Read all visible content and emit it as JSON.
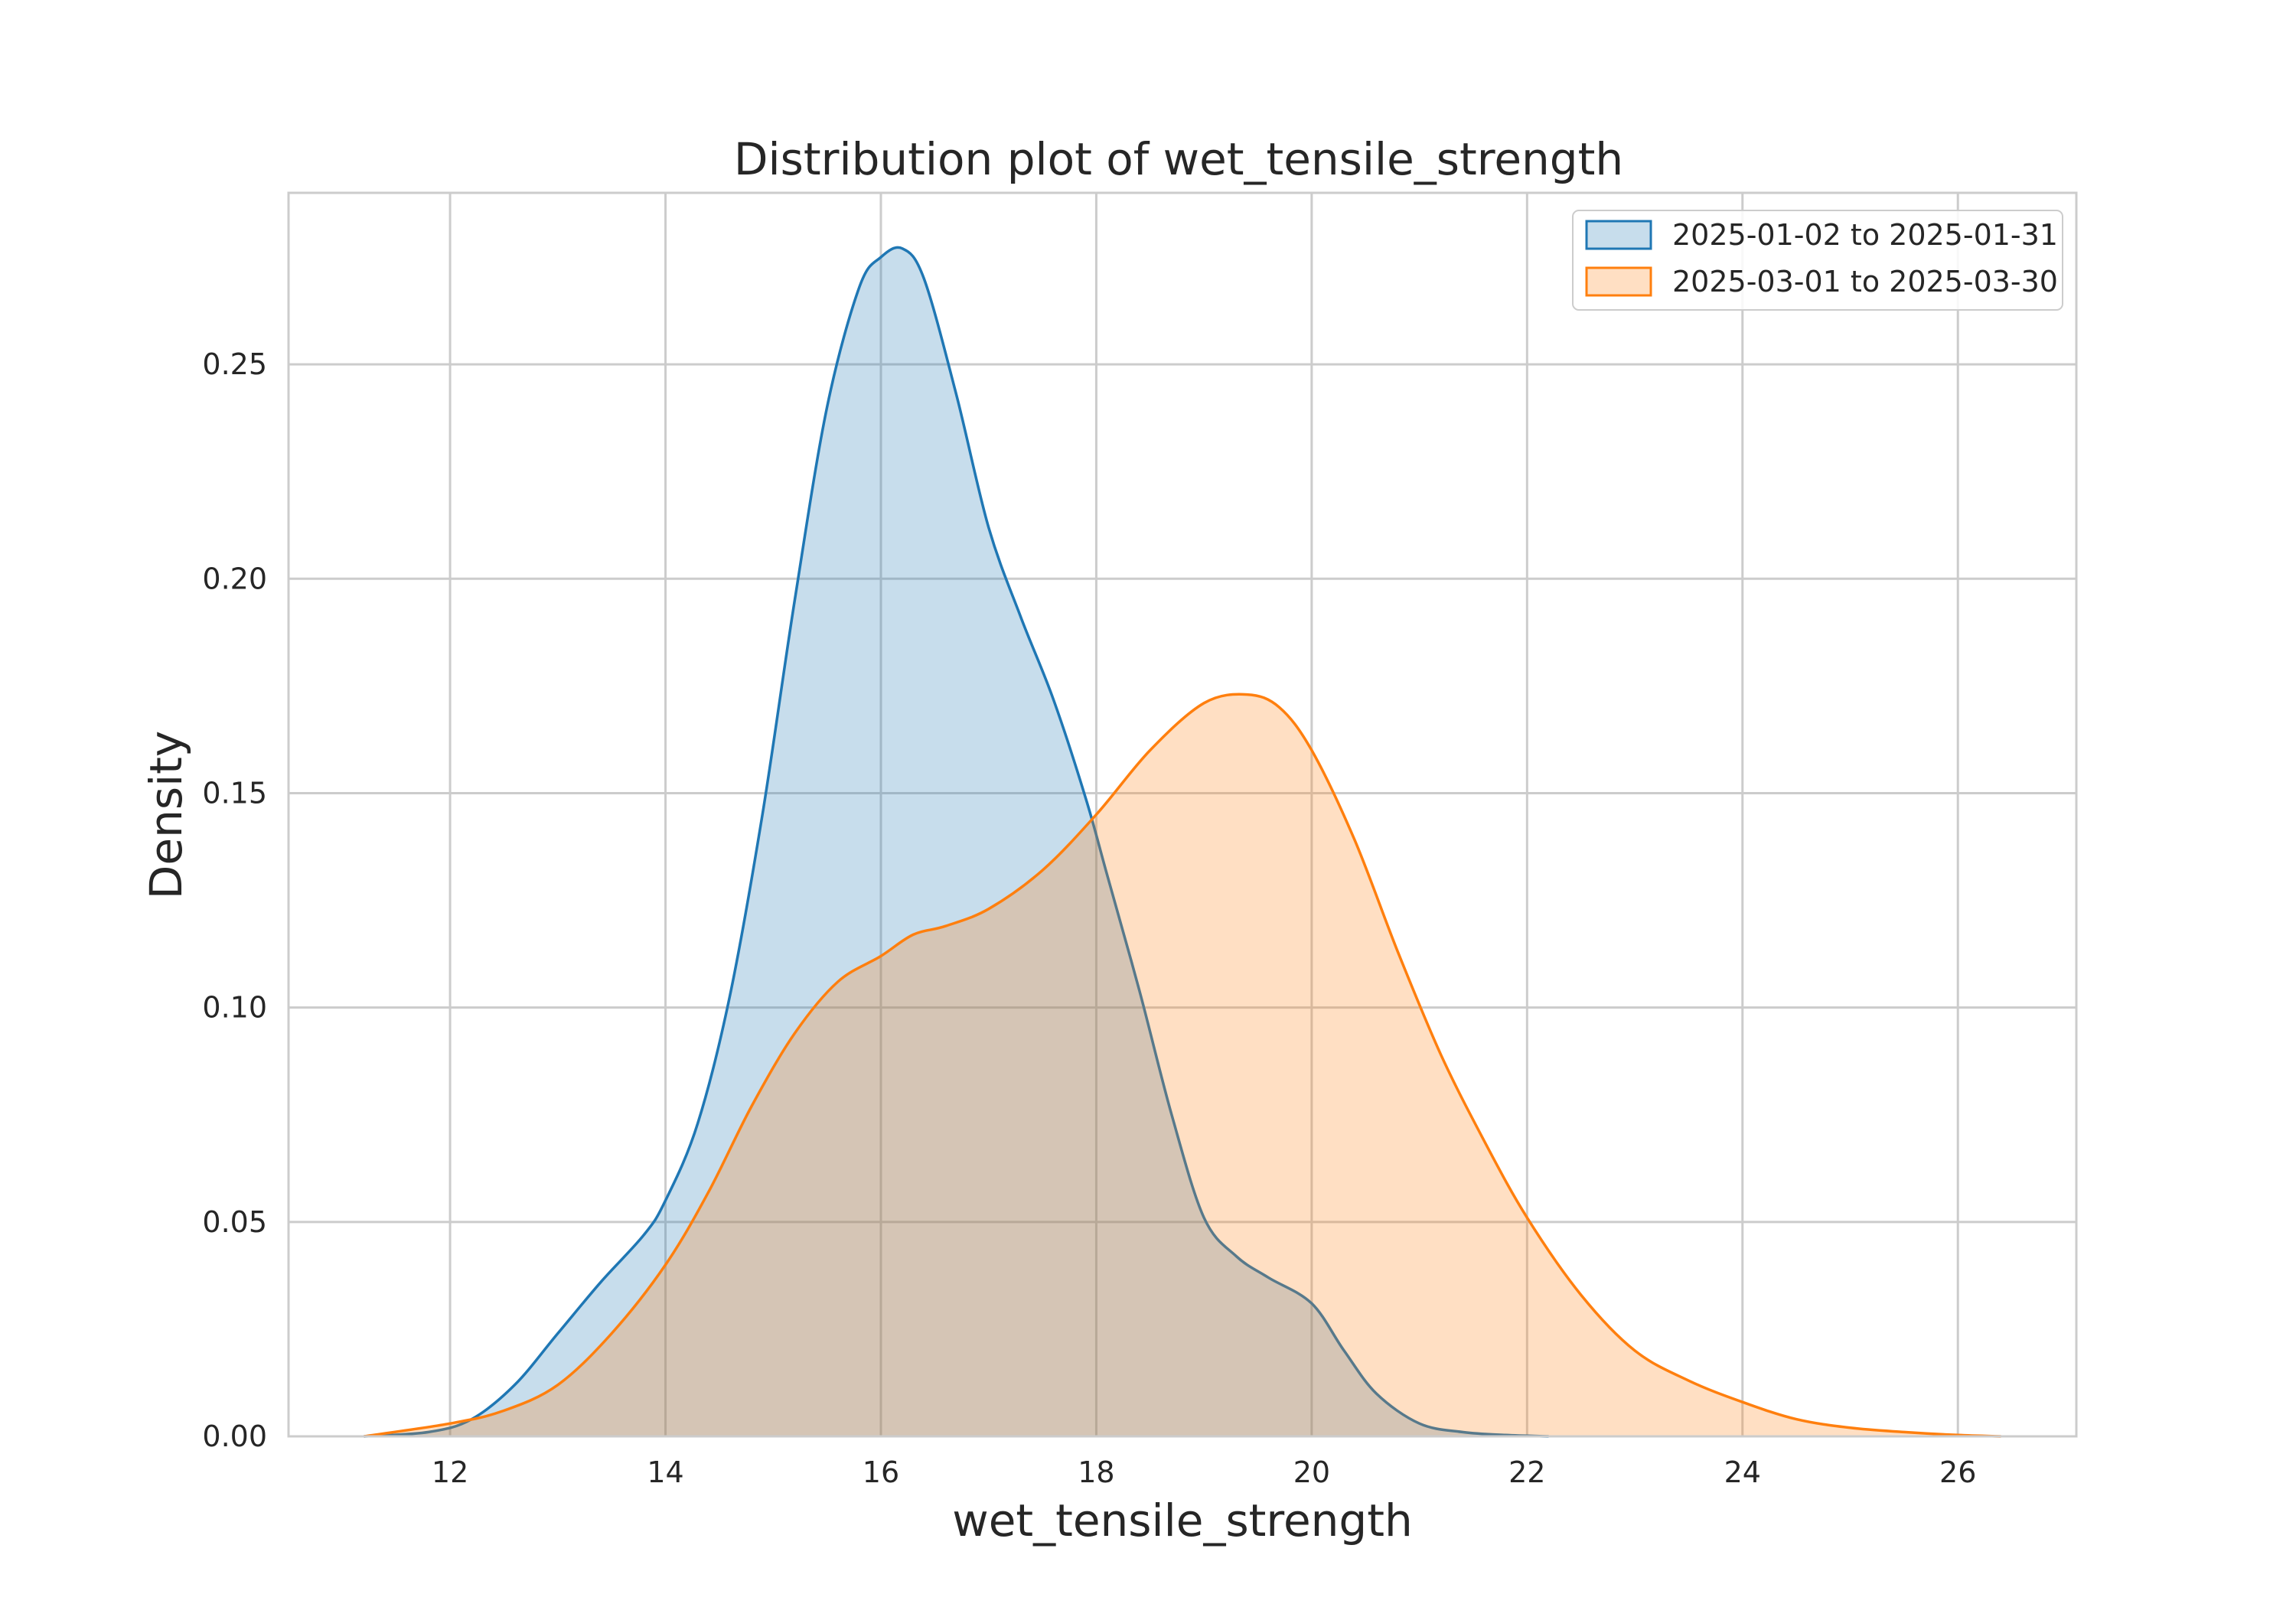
{
  "chart_data": {
    "type": "area",
    "title": "Distribution plot of wet_tensile_strength",
    "xlabel": "wet_tensile_strength",
    "ylabel": "Density",
    "xlim": [
      10.5,
      27.1
    ],
    "ylim": [
      0,
      0.29
    ],
    "xticks": [
      12,
      14,
      16,
      18,
      20,
      22,
      24,
      26
    ],
    "yticks": [
      0.0,
      0.05,
      0.1,
      0.15,
      0.2,
      0.25
    ],
    "ytick_labels": [
      "0.00",
      "0.05",
      "0.10",
      "0.15",
      "0.20",
      "0.25"
    ],
    "grid": true,
    "legend_position": "top-right",
    "series": [
      {
        "name": "2025-01-02 to 2025-01-31",
        "color": "#1f77b4",
        "fill_opacity": 0.25,
        "x": [
          11.2,
          11.8,
          12.2,
          12.6,
          13.0,
          13.4,
          13.8,
          14.0,
          14.3,
          14.6,
          14.9,
          15.2,
          15.5,
          15.8,
          16.0,
          16.2,
          16.4,
          16.7,
          17.0,
          17.3,
          17.6,
          17.9,
          18.1,
          18.4,
          18.7,
          19.0,
          19.3,
          19.6,
          20.0,
          20.3,
          20.6,
          21.0,
          21.4,
          21.8,
          22.2
        ],
        "y": [
          0.0,
          0.001,
          0.004,
          0.012,
          0.024,
          0.036,
          0.047,
          0.055,
          0.073,
          0.103,
          0.145,
          0.195,
          0.24,
          0.268,
          0.275,
          0.277,
          0.27,
          0.243,
          0.212,
          0.191,
          0.172,
          0.149,
          0.131,
          0.104,
          0.075,
          0.051,
          0.042,
          0.037,
          0.031,
          0.02,
          0.01,
          0.003,
          0.001,
          0.0003,
          0.0
        ]
      },
      {
        "name": "2025-03-01 to 2025-03-30",
        "color": "#ff7f0e",
        "fill_opacity": 0.25,
        "x": [
          11.2,
          12.0,
          12.5,
          13.0,
          13.5,
          14.0,
          14.4,
          14.8,
          15.2,
          15.6,
          16.0,
          16.3,
          16.6,
          17.0,
          17.5,
          18.0,
          18.5,
          19.0,
          19.4,
          19.7,
          20.0,
          20.4,
          20.8,
          21.2,
          21.6,
          22.0,
          22.5,
          23.0,
          23.5,
          24.0,
          24.5,
          25.0,
          25.5,
          26.0,
          26.4
        ],
        "y": [
          0.0,
          0.003,
          0.006,
          0.012,
          0.024,
          0.04,
          0.057,
          0.077,
          0.094,
          0.106,
          0.112,
          0.117,
          0.119,
          0.123,
          0.132,
          0.145,
          0.16,
          0.171,
          0.173,
          0.17,
          0.16,
          0.139,
          0.113,
          0.089,
          0.069,
          0.051,
          0.033,
          0.02,
          0.013,
          0.008,
          0.004,
          0.002,
          0.001,
          0.0003,
          0.0
        ]
      }
    ]
  }
}
